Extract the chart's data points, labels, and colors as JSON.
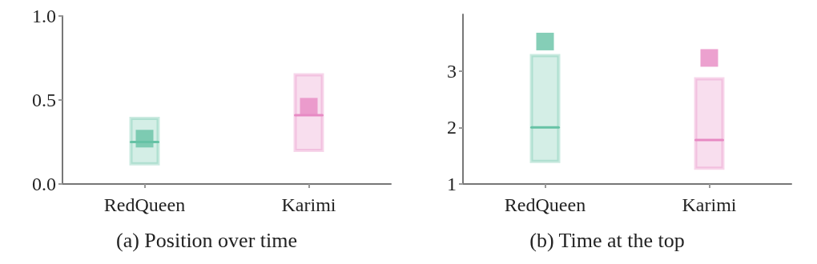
{
  "chart_data": [
    {
      "type": "box",
      "title": "(a) Position over time",
      "categories": [
        "RedQueen",
        "Karimi"
      ],
      "colors": [
        "#66c2a5",
        "#e78ac3"
      ],
      "marker": "square",
      "grid": false,
      "ylim": [
        0,
        1
      ],
      "yticks": [
        {
          "value": 0,
          "label": "0.0"
        },
        {
          "value": 0.5,
          "label": "0.5"
        },
        {
          "value": 1,
          "label": "1.0"
        }
      ],
      "boxes": [
        {
          "low": 0.12,
          "q1": 0.12,
          "median": 0.25,
          "q3": 0.39,
          "high": 0.39,
          "mean": 0.27
        },
        {
          "low": 0.2,
          "q1": 0.2,
          "median": 0.41,
          "q3": 0.65,
          "high": 0.65,
          "mean": 0.46
        }
      ]
    },
    {
      "type": "box",
      "title": "(b) Time at the top",
      "categories": [
        "RedQueen",
        "Karimi"
      ],
      "colors": [
        "#66c2a5",
        "#e78ac3"
      ],
      "marker": "square",
      "grid": false,
      "ylim": [
        1,
        4
      ],
      "yticks": [
        1,
        2,
        3
      ],
      "boxes": [
        {
          "low": 1.4,
          "q1": 1.4,
          "median": 2.0,
          "q3": 3.27,
          "high": 3.27,
          "mean": 3.52
        },
        {
          "low": 1.28,
          "q1": 1.28,
          "median": 1.78,
          "q3": 2.86,
          "high": 2.86,
          "mean": 3.23
        }
      ]
    }
  ]
}
